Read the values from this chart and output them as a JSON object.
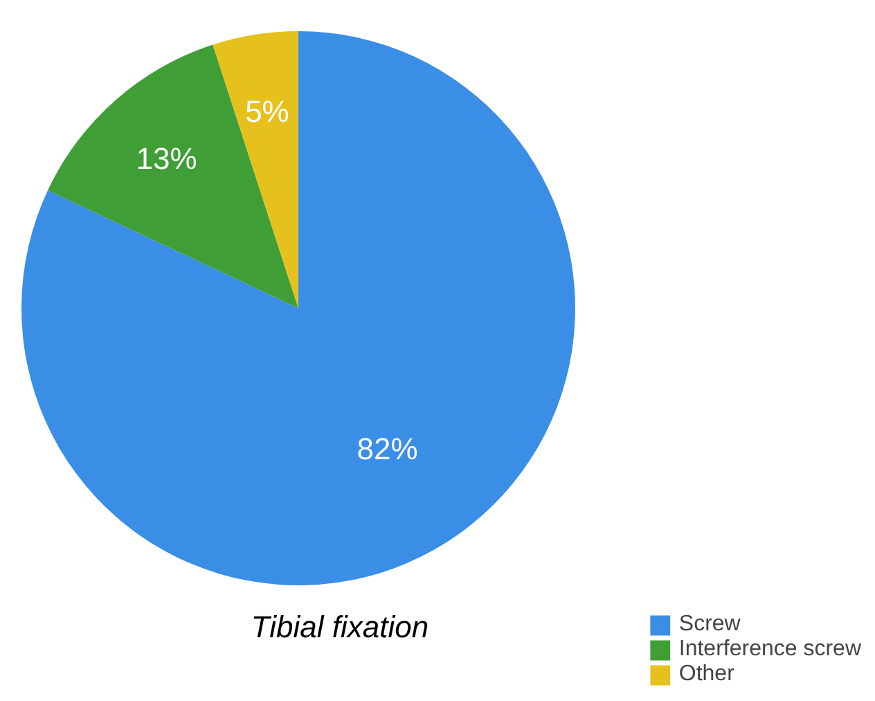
{
  "chart_data": {
    "type": "pie",
    "title": "Tibial fixation",
    "categories": [
      "Screw",
      "Interference screw",
      "Other"
    ],
    "values": [
      82,
      13,
      5
    ],
    "colors": [
      "#3a8ee6",
      "#3f9f36",
      "#e6c11e"
    ],
    "value_labels": [
      "82%",
      "13%",
      "5%"
    ],
    "legend": "bottom right"
  }
}
